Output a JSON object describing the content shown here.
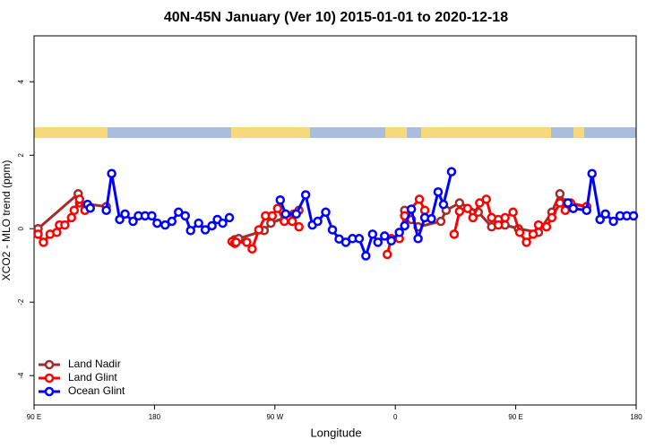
{
  "chart_data": {
    "type": "line",
    "title": "40N-45N January (Ver 10)   2015-01-01 to 2020-12-18",
    "x_label": "Longitude",
    "y_label": "XCO2 - MLO trend (ppm)",
    "xlim": [
      90,
      540
    ],
    "ylim": [
      -4.8,
      5.25
    ],
    "xticks": [
      {
        "value": 90,
        "label": "90 E"
      },
      {
        "value": 180,
        "label": "180"
      },
      {
        "value": 270,
        "label": "90 W"
      },
      {
        "value": 360,
        "label": "0"
      },
      {
        "value": 450,
        "label": "90 E"
      },
      {
        "value": 540,
        "label": "180"
      }
    ],
    "yticks": [
      -4,
      -2,
      0,
      2,
      4
    ],
    "legend": "bottomleft",
    "series": [
      {
        "name": "Land Nadir",
        "color": "#a52a2a",
        "x": [
          93,
          123,
          124,
          144,
          null,
          240,
          243,
          262,
          267,
          284,
          288,
          null,
          367,
          372,
          377,
          394,
          398,
          408,
          422,
          432,
          437,
          442,
          452,
          467,
          477,
          483,
          487,
          503
        ],
        "values": [
          0,
          0.95,
          0.7,
          0.6,
          null,
          -0.3,
          -0.27,
          -0.05,
          0.15,
          0.4,
          0.5,
          null,
          0.5,
          0.25,
          0.05,
          0.2,
          0.5,
          0.7,
          0.45,
          0.05,
          0.25,
          0.1,
          0,
          -0.1,
          0.45,
          0.95,
          0.7,
          0.6
        ]
      },
      {
        "name": "Land Glint",
        "color": "#ff0000",
        "x": [
          93,
          97,
          102,
          107,
          109,
          113,
          118,
          120,
          124,
          128,
          null,
          238,
          240,
          241,
          249,
          253,
          258,
          263,
          268,
          272,
          277,
          283,
          288,
          null,
          354,
          357,
          363,
          367,
          378,
          382,
          null,
          404,
          408,
          414,
          418,
          423,
          428,
          432,
          437,
          442,
          448,
          453,
          458,
          463,
          467,
          473,
          477,
          483,
          487,
          491,
          503
        ],
        "values": [
          -0.15,
          -0.37,
          -0.15,
          -0.1,
          0.1,
          0.1,
          0.3,
          0.5,
          0.8,
          0.5,
          null,
          -0.35,
          -0.4,
          -0.37,
          -0.37,
          -0.55,
          -0.03,
          0.35,
          0.35,
          0.55,
          0.2,
          0.2,
          0.05,
          null,
          -0.7,
          -0.27,
          -0.27,
          0.35,
          0.8,
          0.5,
          null,
          -0.15,
          0.47,
          0.55,
          0.3,
          0.7,
          0.8,
          0.3,
          0.1,
          0.3,
          0.45,
          -0.1,
          -0.37,
          -0.15,
          0.1,
          0.05,
          0.3,
          0.7,
          0.5,
          0.7,
          0.6
        ]
      },
      {
        "name": "Ocean Glint",
        "color": "#0000ff",
        "x": [
          130,
          132,
          null,
          144,
          148,
          154,
          158,
          164,
          168,
          173,
          178,
          182,
          188,
          193,
          198,
          203,
          207,
          213,
          218,
          223,
          227,
          231,
          236,
          null,
          274,
          278,
          286,
          293,
          298,
          302,
          308,
          313,
          318,
          323,
          328,
          333,
          338,
          343,
          347,
          352,
          357,
          363,
          367,
          372,
          377,
          382,
          387,
          392,
          396,
          402,
          null,
          489,
          493,
          503,
          507,
          513,
          517,
          523,
          528,
          533,
          538
        ],
        "values": [
          0.66,
          0.56,
          null,
          0.5,
          1.5,
          0.25,
          0.4,
          0.2,
          0.35,
          0.35,
          0.35,
          0.15,
          0.1,
          0.2,
          0.45,
          0.35,
          -0.05,
          0.15,
          -0.03,
          0.08,
          0.25,
          0.15,
          0.3,
          null,
          0.78,
          0.4,
          0.4,
          0.92,
          0.1,
          0.2,
          0.45,
          -0.03,
          -0.28,
          -0.37,
          -0.27,
          -0.27,
          -0.74,
          -0.15,
          -0.37,
          -0.2,
          -0.33,
          -0.1,
          0.08,
          0.53,
          -0.27,
          0.3,
          0.27,
          1.0,
          0.66,
          1.55,
          null,
          0.7,
          0.55,
          0.5,
          1.5,
          0.25,
          0.4,
          0.2,
          0.35,
          0.35,
          0.35
        ]
      }
    ]
  }
}
